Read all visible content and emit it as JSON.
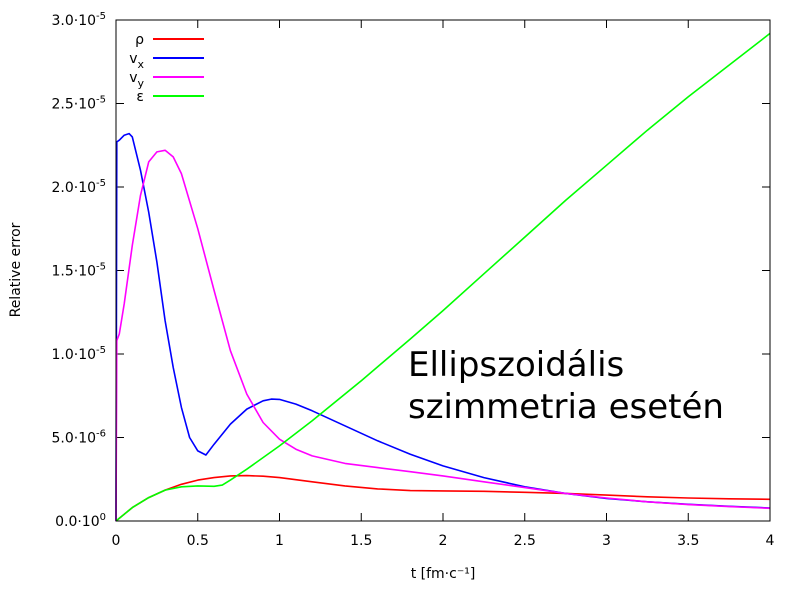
{
  "chart_data": {
    "type": "line",
    "xlabel": "t [fm·c⁻¹]",
    "ylabel": "Relative error",
    "xlim": [
      0,
      4
    ],
    "ylim": [
      0,
      3e-05
    ],
    "x_ticks": [
      {
        "value": 0,
        "label": "0"
      },
      {
        "value": 0.5,
        "label": "0.5"
      },
      {
        "value": 1,
        "label": "1"
      },
      {
        "value": 1.5,
        "label": "1.5"
      },
      {
        "value": 2,
        "label": "2"
      },
      {
        "value": 2.5,
        "label": "2.5"
      },
      {
        "value": 3,
        "label": "3"
      },
      {
        "value": 3.5,
        "label": "3.5"
      },
      {
        "value": 4,
        "label": "4"
      }
    ],
    "y_ticks": [
      {
        "value": 0,
        "mant": "0.0·10",
        "exp": "0"
      },
      {
        "value": 5e-06,
        "mant": "5.0·10",
        "exp": "-6"
      },
      {
        "value": 1e-05,
        "mant": "1.0·10",
        "exp": "-5"
      },
      {
        "value": 1.5e-05,
        "mant": "1.5·10",
        "exp": "-5"
      },
      {
        "value": 2e-05,
        "mant": "2.0·10",
        "exp": "-5"
      },
      {
        "value": 2.5e-05,
        "mant": "2.5·10",
        "exp": "-5"
      },
      {
        "value": 3e-05,
        "mant": "3.0·10",
        "exp": "-5"
      }
    ],
    "legend_position": "top-left",
    "annotation": [
      "Ellipszoidális",
      "szimmetria esetén"
    ],
    "series": [
      {
        "name": "ρ",
        "sub": "",
        "color": "#ff0000",
        "x": [
          0,
          0.1,
          0.2,
          0.3,
          0.4,
          0.5,
          0.6,
          0.7,
          0.8,
          0.9,
          1.0,
          1.2,
          1.4,
          1.6,
          1.8,
          2.0,
          2.25,
          2.5,
          2.75,
          3.0,
          3.25,
          3.5,
          3.75,
          4.0
        ],
        "y": [
          0,
          8e-07,
          1.4e-06,
          1.85e-06,
          2.2e-06,
          2.45e-06,
          2.6e-06,
          2.7e-06,
          2.72e-06,
          2.68e-06,
          2.6e-06,
          2.35e-06,
          2.1e-06,
          1.92e-06,
          1.82e-06,
          1.8e-06,
          1.78e-06,
          1.72e-06,
          1.65e-06,
          1.55e-06,
          1.45e-06,
          1.38e-06,
          1.33e-06,
          1.3e-06
        ]
      },
      {
        "name": "v",
        "sub": "x",
        "color": "#0000ff",
        "x": [
          0,
          0.005,
          0.02,
          0.05,
          0.08,
          0.1,
          0.15,
          0.2,
          0.25,
          0.3,
          0.35,
          0.4,
          0.45,
          0.5,
          0.55,
          0.6,
          0.7,
          0.8,
          0.9,
          0.95,
          1.0,
          1.1,
          1.2,
          1.4,
          1.6,
          1.8,
          2.0,
          2.25,
          2.5,
          2.75,
          3.0,
          3.25,
          3.5,
          3.75,
          4.0
        ],
        "y": [
          0,
          2.27e-05,
          2.28e-05,
          2.31e-05,
          2.32e-05,
          2.3e-05,
          2.1e-05,
          1.85e-05,
          1.55e-05,
          1.2e-05,
          9.2e-06,
          6.8e-06,
          5e-06,
          4.2e-06,
          3.95e-06,
          4.6e-06,
          5.8e-06,
          6.7e-06,
          7.2e-06,
          7.3e-06,
          7.28e-06,
          7e-06,
          6.6e-06,
          5.7e-06,
          4.8e-06,
          4e-06,
          3.3e-06,
          2.6e-06,
          2.05e-06,
          1.65e-06,
          1.35e-06,
          1.15e-06,
          1e-06,
          8.8e-07,
          7.8e-07
        ]
      },
      {
        "name": "v",
        "sub": "y",
        "color": "#ff00ff",
        "x": [
          0,
          0.005,
          0.02,
          0.05,
          0.1,
          0.15,
          0.2,
          0.25,
          0.3,
          0.35,
          0.4,
          0.5,
          0.6,
          0.7,
          0.8,
          0.9,
          1.0,
          1.1,
          1.2,
          1.4,
          1.6,
          1.8,
          2.0,
          2.25,
          2.5,
          2.75,
          3.0,
          3.25,
          3.5,
          3.75,
          4.0
        ],
        "y": [
          0,
          1.08e-05,
          1.12e-05,
          1.3e-05,
          1.65e-05,
          1.95e-05,
          2.15e-05,
          2.21e-05,
          2.22e-05,
          2.18e-05,
          2.08e-05,
          1.75e-05,
          1.38e-05,
          1.02e-05,
          7.6e-06,
          5.9e-06,
          4.9e-06,
          4.3e-06,
          3.9e-06,
          3.45e-06,
          3.2e-06,
          2.95e-06,
          2.7e-06,
          2.35e-06,
          2e-06,
          1.65e-06,
          1.38e-06,
          1.15e-06,
          9.8e-07,
          8.6e-07,
          7.6e-07
        ]
      },
      {
        "name": "ε",
        "sub": "",
        "color": "#00ff00",
        "x": [
          0,
          0.1,
          0.2,
          0.3,
          0.4,
          0.5,
          0.6,
          0.65,
          0.7,
          0.8,
          1.0,
          1.2,
          1.5,
          1.8,
          2.0,
          2.25,
          2.5,
          2.75,
          3.0,
          3.25,
          3.5,
          3.75,
          4.0
        ],
        "y": [
          0,
          8e-07,
          1.4e-06,
          1.85e-06,
          2.05e-06,
          2.1e-06,
          2.08e-06,
          2.15e-06,
          2.45e-06,
          3.1e-06,
          4.5e-06,
          6e-06,
          8.4e-06,
          1.09e-05,
          1.26e-05,
          1.48e-05,
          1.7e-05,
          1.92e-05,
          2.13e-05,
          2.34e-05,
          2.54e-05,
          2.73e-05,
          2.92e-05
        ]
      }
    ]
  }
}
